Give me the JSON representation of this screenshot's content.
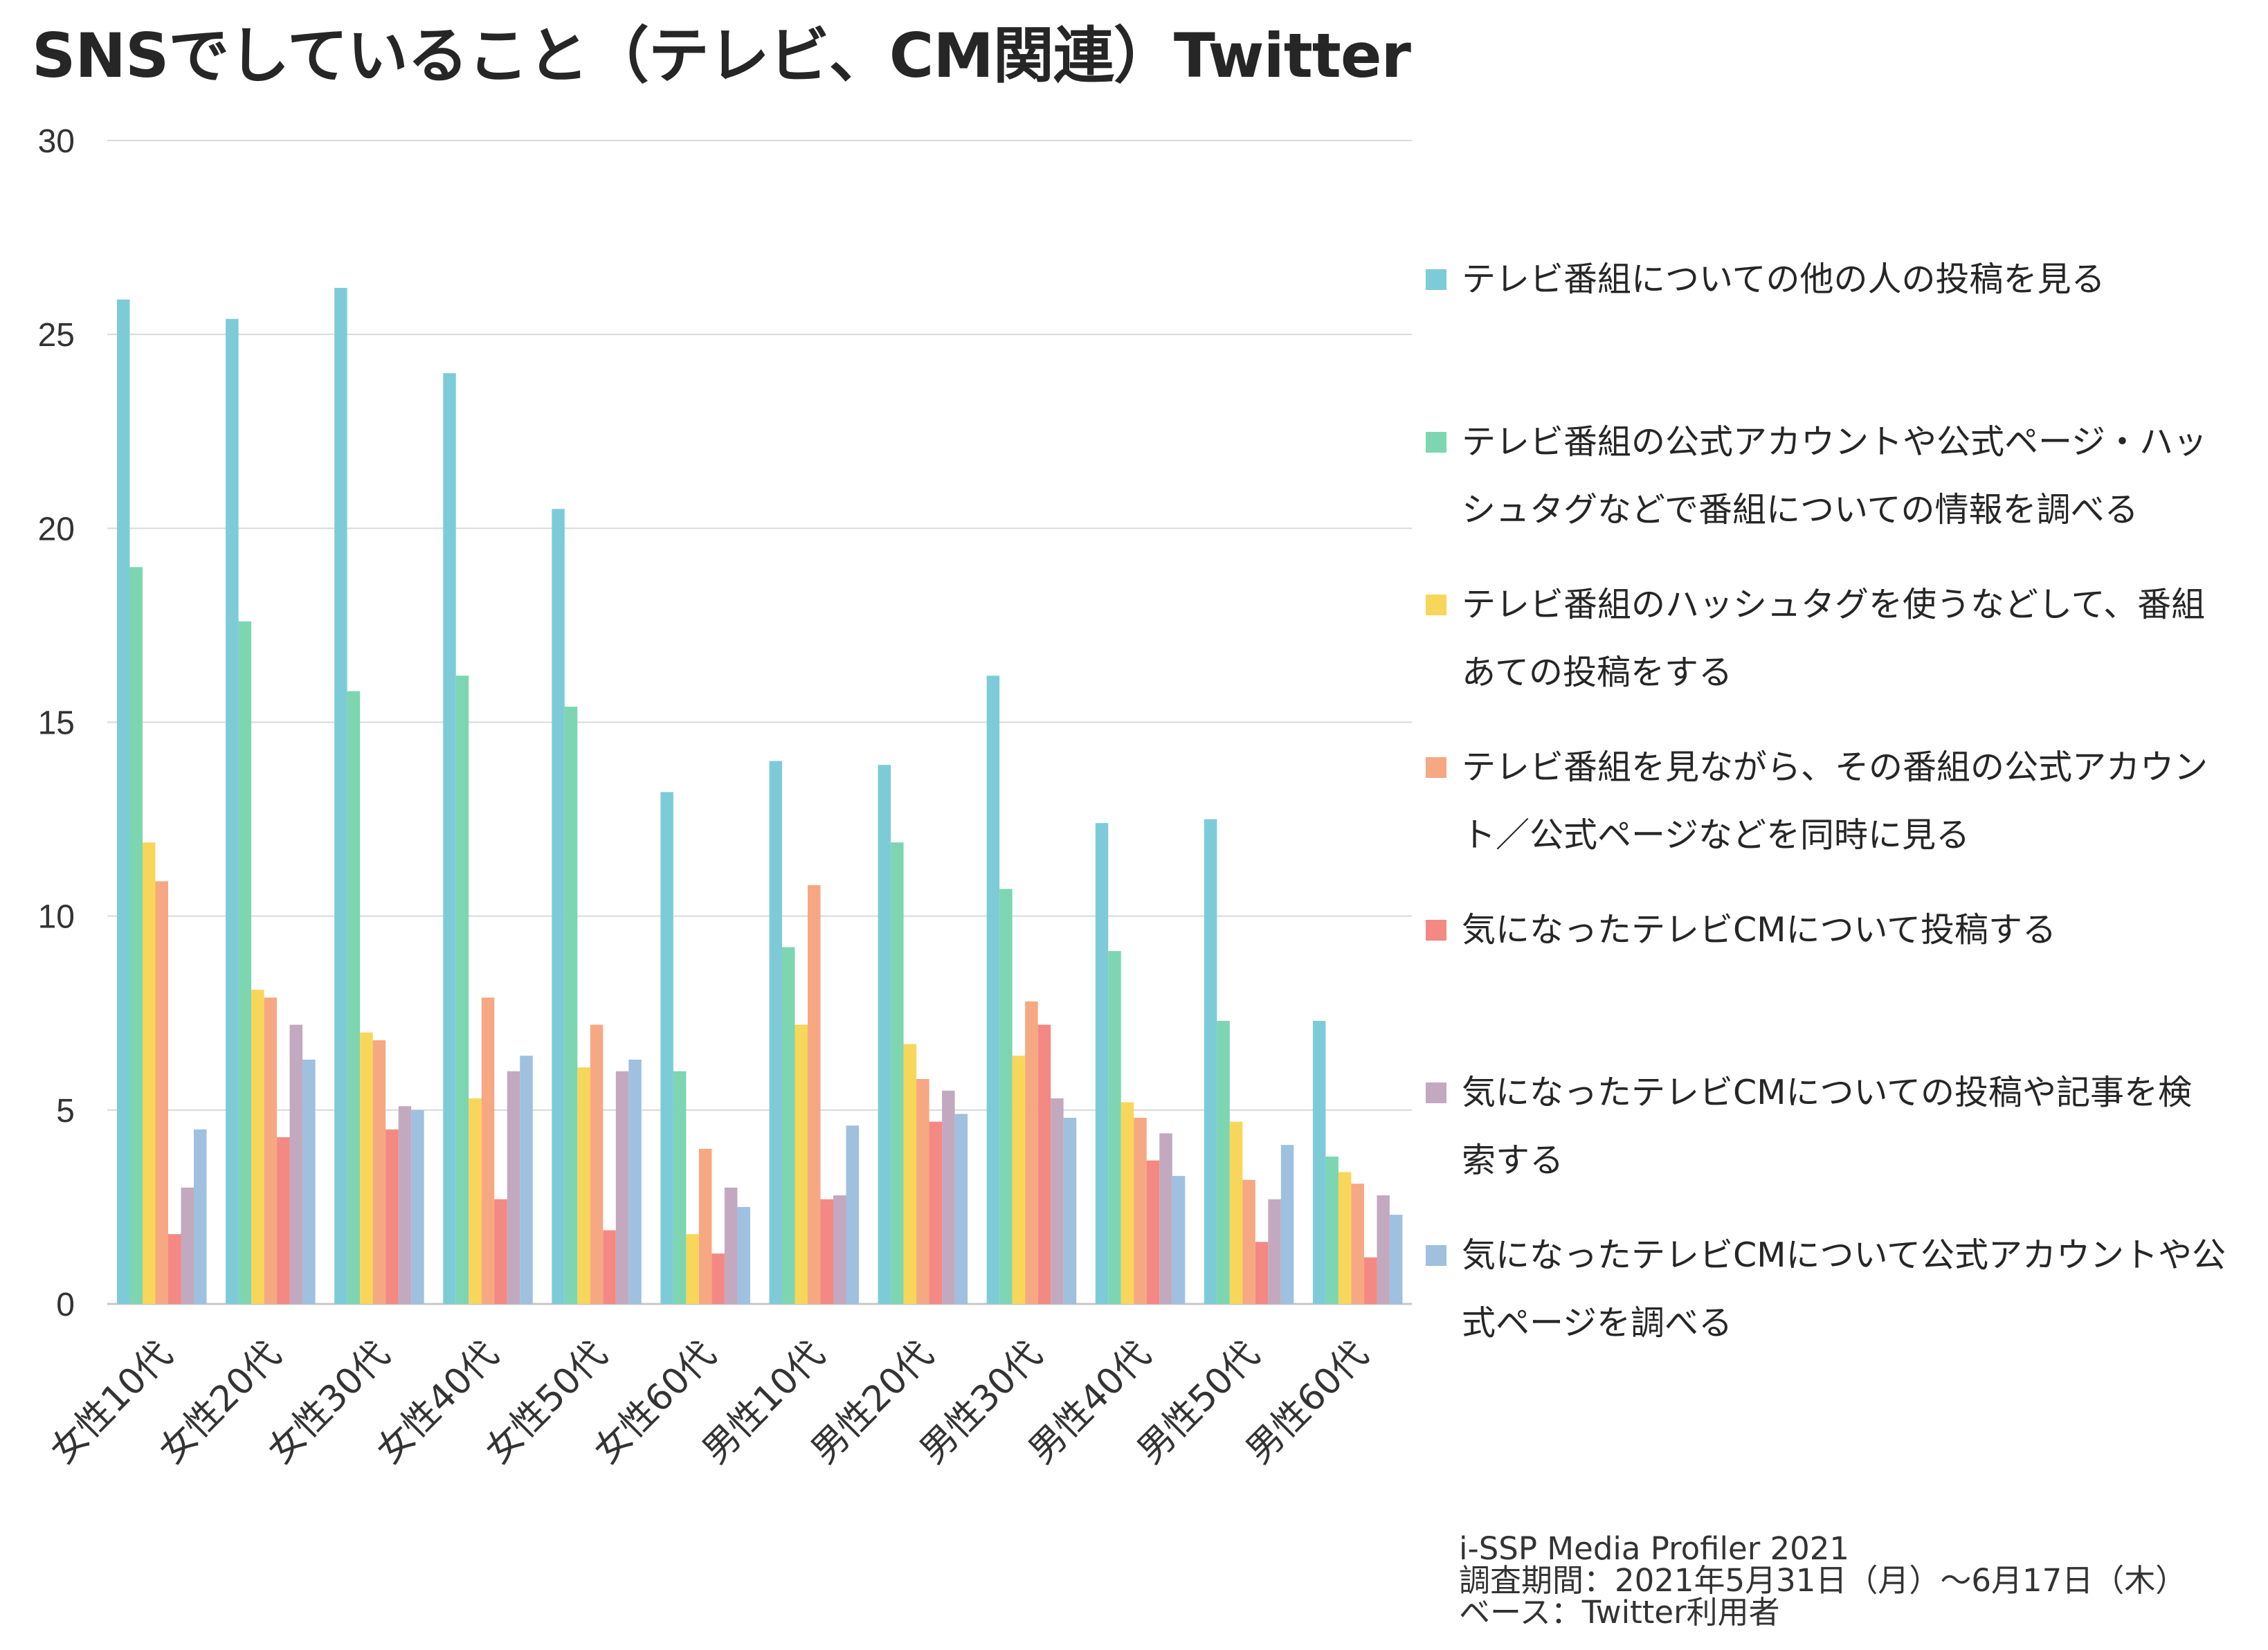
{
  "title": "SNSでしていること（テレビ、CM関連）Twitter",
  "colors": [
    "#7ecbd8",
    "#7dd6b1",
    "#f8d65a",
    "#f6a882",
    "#f48882",
    "#c3a9bf",
    "#9fc0df"
  ],
  "chart_data": {
    "type": "bar",
    "title": "SNSでしていること（テレビ、CM関連）Twitter",
    "xlabel": "",
    "ylabel": "",
    "ylim": [
      0,
      30
    ],
    "yticks": [
      "0",
      "5",
      "10",
      "15",
      "20",
      "25",
      "30"
    ],
    "grid": true,
    "legend_position": "right",
    "categories": [
      "女性10代",
      "女性20代",
      "女性30代",
      "女性40代",
      "女性50代",
      "女性60代",
      "男性10代",
      "男性20代",
      "男性30代",
      "男性40代",
      "男性50代",
      "男性60代"
    ],
    "series": [
      {
        "name": "テレビ番組についての他の人の投稿を見る",
        "values": [
          25.9,
          25.4,
          26.2,
          24.0,
          20.5,
          13.2,
          14.0,
          13.9,
          16.2,
          12.4,
          12.5,
          7.3
        ]
      },
      {
        "name": "テレビ番組の公式アカウントや公式ページ・ハッシュタグなどで番組についての情報を調べる",
        "values": [
          19.0,
          17.6,
          15.8,
          16.2,
          15.4,
          6.0,
          9.2,
          11.9,
          10.7,
          9.1,
          7.3,
          3.8
        ]
      },
      {
        "name": "テレビ番組のハッシュタグを使うなどして、番組あての投稿をする",
        "values": [
          11.9,
          8.1,
          7.0,
          5.3,
          6.1,
          1.8,
          7.2,
          6.7,
          6.4,
          5.2,
          4.7,
          3.4
        ]
      },
      {
        "name": "テレビ番組を見ながら、その番組の公式アカウント／公式ページなどを同時に見る",
        "values": [
          10.9,
          7.9,
          6.8,
          7.9,
          7.2,
          4.0,
          10.8,
          5.8,
          7.8,
          4.8,
          3.2,
          3.1
        ]
      },
      {
        "name": "気になったテレビCMについて投稿する",
        "values": [
          1.8,
          4.3,
          4.5,
          2.7,
          1.9,
          1.3,
          2.7,
          4.7,
          7.2,
          3.7,
          1.6,
          1.2
        ]
      },
      {
        "name": "気になったテレビCMについての投稿や記事を検索する",
        "values": [
          3.0,
          7.2,
          5.1,
          6.0,
          6.0,
          3.0,
          2.8,
          5.5,
          5.3,
          4.4,
          2.7,
          2.8
        ]
      },
      {
        "name": "気になったテレビCMについて公式アカウントや公式ページを調べる",
        "values": [
          4.5,
          6.3,
          5.0,
          6.4,
          6.3,
          2.5,
          4.6,
          4.9,
          4.8,
          3.3,
          4.1,
          2.3
        ]
      }
    ]
  },
  "legend": [
    {
      "lines": [
        "テレビ番組についての他の人の投稿を見る"
      ]
    },
    {
      "lines": [
        "テレビ番組の公式アカウントや公式ページ・ハッ",
        "シュタグなどで番組についての情報を調べる"
      ]
    },
    {
      "lines": [
        "テレビ番組のハッシュタグを使うなどして、番組",
        "あての投稿をする"
      ]
    },
    {
      "lines": [
        "テレビ番組を見ながら、その番組の公式アカウン",
        "ト／公式ページなどを同時に見る"
      ]
    },
    {
      "lines": [
        "気になったテレビCMについて投稿する"
      ]
    },
    {
      "lines": [
        "気になったテレビCMについての投稿や記事を検",
        "索する"
      ]
    },
    {
      "lines": [
        "気になったテレビCMについて公式アカウントや公",
        "式ページを調べる"
      ]
    }
  ],
  "source": {
    "line1": "i-SSP Media Profiler 2021",
    "line2": "調査期間：2021年5月31日（月）～6月17日（木）",
    "line3": "ベース：Twitter利用者"
  }
}
